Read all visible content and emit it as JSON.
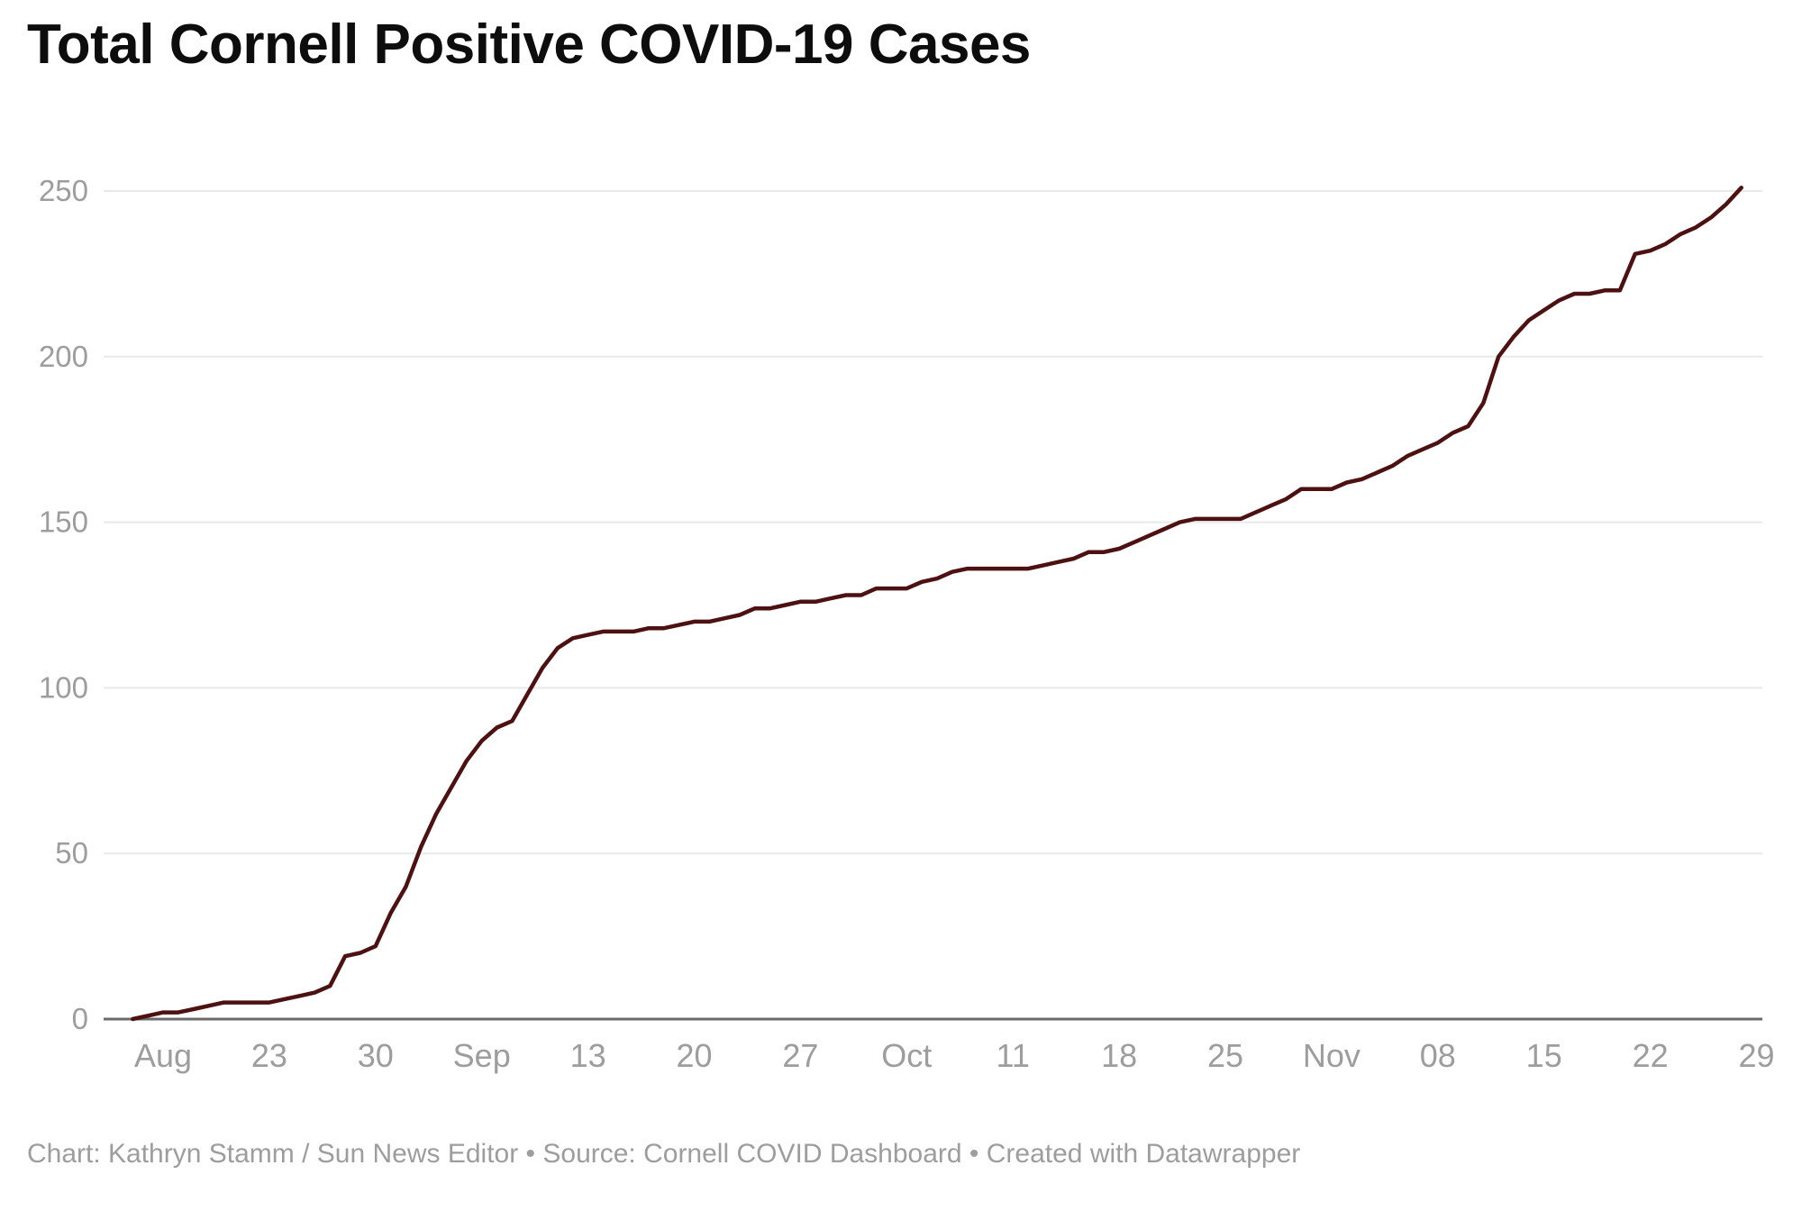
{
  "colors": {
    "background": "#ffffff",
    "title_text": "#0d0d0d",
    "line": "#4d1111",
    "gridline": "#e9e9e9",
    "axis_line": "#6b6b6b",
    "tick_label_text": "#9d9d9d",
    "footer_text": "#9d9d9d"
  },
  "footer": {
    "text": "Chart: Kathryn Stamm / Sun News Editor • Source: Cornell COVID Dashboard • Created with Datawrapper"
  },
  "chart_data": {
    "type": "line",
    "title": "Total Cornell Positive COVID-19 Cases",
    "xlabel": "",
    "ylabel": "",
    "x_axis": {
      "tick_labels": [
        "Aug",
        "23",
        "30",
        "Sep",
        "13",
        "20",
        "27",
        "Oct",
        "11",
        "18",
        "25",
        "Nov",
        "08",
        "15",
        "22",
        "29"
      ],
      "tick_spacing": "weekly",
      "gridlines": false
    },
    "y_axis": {
      "ticks": [
        0,
        50,
        100,
        150,
        200,
        250
      ],
      "range": [
        0,
        250
      ],
      "gridlines": true,
      "zero_baseline_dark": true
    },
    "legend": "none",
    "series": [
      {
        "name": "Total Cornell positive COVID-19 cases (cumulative)",
        "cadence": "daily",
        "start_date": "Aug 14",
        "end_date": "Nov 28",
        "values": [
          0,
          1,
          2,
          2,
          3,
          4,
          5,
          5,
          5,
          5,
          6,
          7,
          8,
          10,
          19,
          20,
          22,
          32,
          40,
          52,
          62,
          70,
          78,
          84,
          88,
          90,
          98,
          106,
          112,
          115,
          116,
          117,
          117,
          117,
          118,
          118,
          119,
          120,
          120,
          121,
          122,
          124,
          124,
          125,
          126,
          126,
          127,
          128,
          128,
          130,
          130,
          130,
          132,
          133,
          135,
          136,
          136,
          136,
          136,
          136,
          137,
          138,
          139,
          141,
          141,
          142,
          144,
          146,
          148,
          150,
          151,
          151,
          151,
          151,
          153,
          155,
          157,
          160,
          160,
          160,
          162,
          163,
          165,
          167,
          170,
          172,
          174,
          177,
          179,
          186,
          200,
          206,
          211,
          214,
          217,
          219,
          219,
          220,
          220,
          231,
          232,
          234,
          237,
          239,
          242,
          246,
          251
        ]
      }
    ]
  }
}
